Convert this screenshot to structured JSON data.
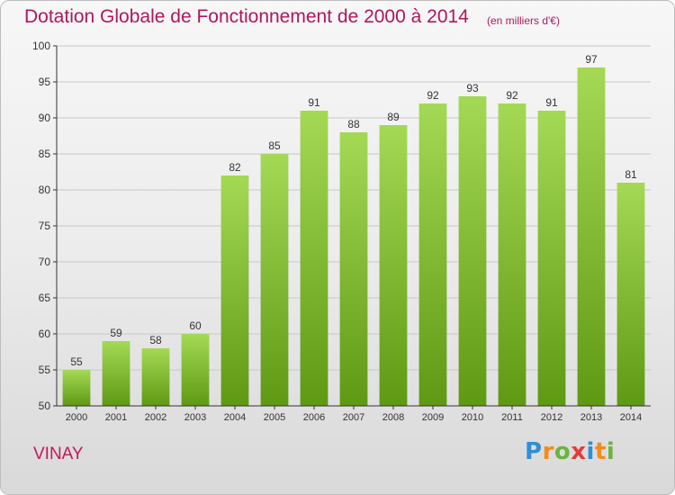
{
  "header": {
    "title": "Dotation Globale de Fonctionnement de 2000 à 2014",
    "subtitle": "(en milliers d'€)"
  },
  "footer": {
    "commune": "VINAY",
    "logo_letters": [
      {
        "ch": "P",
        "color": "#2e8fd6"
      },
      {
        "ch": "r",
        "color": "#f28a1e"
      },
      {
        "ch": "o",
        "color": "#6cb33f"
      },
      {
        "ch": "x",
        "color": "#e23c3c"
      },
      {
        "ch": "i",
        "color": "#2e8fd6"
      },
      {
        "ch": "t",
        "color": "#f28a1e"
      },
      {
        "ch": "i",
        "color": "#6cb33f"
      }
    ]
  },
  "colors": {
    "bar_top": "#a4d955",
    "bar_bottom": "#5f9914",
    "grid": "#c8c8c8",
    "axis": "#333333",
    "label": "#333333",
    "title": "#b0165e"
  },
  "chart_data": {
    "type": "bar",
    "title": "Dotation Globale de Fonctionnement de 2000 à 2014",
    "subtitle": "(en milliers d'€)",
    "categories": [
      "2000",
      "2001",
      "2002",
      "2003",
      "2004",
      "2005",
      "2006",
      "2007",
      "2008",
      "2009",
      "2010",
      "2011",
      "2012",
      "2013",
      "2014"
    ],
    "values": [
      55,
      59,
      58,
      60,
      82,
      85,
      91,
      88,
      89,
      92,
      93,
      92,
      91,
      97,
      81
    ],
    "data_labels": true,
    "xlabel": "",
    "ylabel": "",
    "ylim": [
      50,
      100
    ],
    "yticks": [
      50,
      55,
      60,
      65,
      70,
      75,
      80,
      85,
      90,
      95,
      100
    ],
    "grid": true,
    "legend": "none"
  }
}
